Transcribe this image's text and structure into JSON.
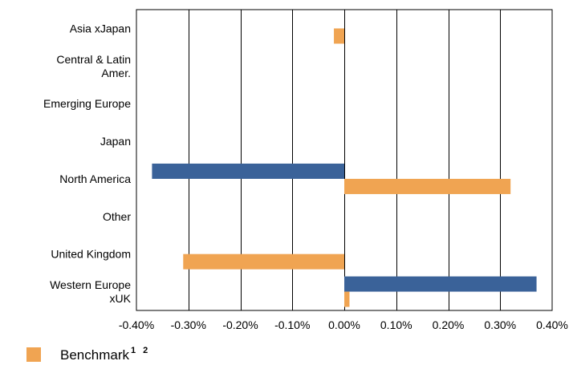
{
  "chart_data": {
    "type": "bar",
    "orientation": "horizontal",
    "categories": [
      [
        "Asia xJapan"
      ],
      [
        "Central & Latin",
        "Amer."
      ],
      [
        "Emerging Europe"
      ],
      [
        "Japan"
      ],
      [
        "North America"
      ],
      [
        "Other"
      ],
      [
        "United Kingdom"
      ],
      [
        "Western Europe",
        "xUK"
      ]
    ],
    "series": [
      {
        "color": "#3a6299",
        "values": [
          null,
          null,
          null,
          null,
          -0.37,
          null,
          null,
          0.37
        ]
      },
      {
        "name": "Benchmark",
        "color": "#f0a452",
        "values": [
          -0.02,
          null,
          null,
          null,
          0.32,
          null,
          -0.31,
          0.01
        ]
      }
    ],
    "xlim": [
      -0.4,
      0.4
    ],
    "xticks": [
      "-0.40%",
      "-0.30%",
      "-0.20%",
      "-0.10%",
      "0.00%",
      "0.10%",
      "0.20%",
      "0.30%",
      "0.40%"
    ],
    "grid": "vertical",
    "legend_position": "bottom-left"
  },
  "legend": {
    "label": "Benchmark",
    "superscript": "1 2"
  }
}
